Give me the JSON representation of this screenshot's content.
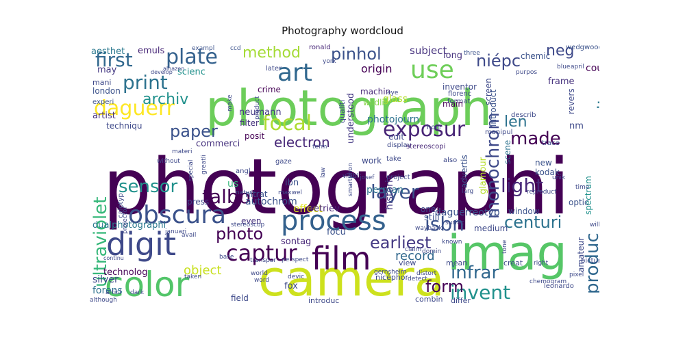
{
  "title": "Photography wordcloud",
  "chart_data": {
    "type": "wordcloud",
    "title": "Photography wordcloud",
    "colormap": "viridis",
    "words": [
      {
        "text": "photographi",
        "color": "#440154"
      },
      {
        "text": "photograph",
        "color": "#6ccd5a"
      },
      {
        "text": "camera",
        "color": "#cde11d"
      },
      {
        "text": "imag",
        "color": "#56c667"
      },
      {
        "text": "color",
        "color": "#52c569"
      },
      {
        "text": "digit",
        "color": "#3e4989"
      },
      {
        "text": "process",
        "color": "#34618d"
      },
      {
        "text": "film",
        "color": "#440154"
      },
      {
        "text": "obscura",
        "color": "#3b528b"
      },
      {
        "text": "captur",
        "color": "#440154"
      },
      {
        "text": "art",
        "color": "#31688e"
      },
      {
        "text": "use",
        "color": "#6ece58"
      },
      {
        "text": "plate",
        "color": "#34618d"
      },
      {
        "text": "first",
        "color": "#31688e"
      },
      {
        "text": "print",
        "color": "#2c728e"
      },
      {
        "text": "daguerr",
        "color": "#fde725"
      },
      {
        "text": "focal",
        "color": "#addc30"
      },
      {
        "text": "exposur",
        "color": "#482576"
      },
      {
        "text": "talbot",
        "color": "#440154"
      },
      {
        "text": "layer",
        "color": "#3b528b"
      },
      {
        "text": "sensor",
        "color": "#21918c"
      },
      {
        "text": "ultraviolet",
        "color": "#35b779"
      },
      {
        "text": "monochrom",
        "color": "#3e4989"
      },
      {
        "text": "sensit",
        "color": "#2a788e"
      },
      {
        "text": "infrar",
        "color": "#31688e"
      },
      {
        "text": "invent",
        "color": "#21918c"
      },
      {
        "text": "form",
        "color": "#440154"
      },
      {
        "text": "light",
        "color": "#482878"
      },
      {
        "text": "centuri",
        "color": "#2c728e"
      },
      {
        "text": "isbn",
        "color": "#3b528b"
      },
      {
        "text": "produc",
        "color": "#31688e"
      },
      {
        "text": "earliest",
        "color": "#443983"
      },
      {
        "text": "photo",
        "color": "#440154"
      },
      {
        "text": "paper",
        "color": "#3b528b"
      },
      {
        "text": "pinhol",
        "color": "#3b528b"
      },
      {
        "text": "niépc",
        "color": "#3e4989"
      },
      {
        "text": "neg",
        "color": "#3e4989"
      },
      {
        "text": "method",
        "color": "#a5db36"
      },
      {
        "text": "archiv",
        "color": "#21918c"
      },
      {
        "text": "len",
        "color": "#2c728e"
      },
      {
        "text": "made",
        "color": "#440154"
      },
      {
        "text": "electron",
        "color": "#482878"
      },
      {
        "text": "object",
        "color": "#c8e020"
      },
      {
        "text": "record",
        "color": "#31688e"
      },
      {
        "text": "origin",
        "color": "#440154"
      },
      {
        "text": "subject",
        "color": "#46327e"
      },
      {
        "text": "photojourn",
        "color": "#2c728e"
      },
      {
        "text": "glass",
        "color": "#b5de2b"
      },
      {
        "text": "wildlif",
        "color": "#86d549"
      },
      {
        "text": "understood",
        "color": "#443983"
      },
      {
        "text": "machin",
        "color": "#482878"
      },
      {
        "text": "autochrom",
        "color": "#3b528b"
      },
      {
        "text": "nitrat",
        "color": "#3b528b"
      },
      {
        "text": "dualphotographi",
        "color": "#2a788e"
      },
      {
        "text": "technolog",
        "color": "#440154"
      },
      {
        "text": "silver",
        "color": "#3e4989"
      },
      {
        "text": "forens",
        "color": "#2c728e"
      },
      {
        "text": "artist",
        "color": "#46327e"
      },
      {
        "text": "techniqu",
        "color": "#3e4989"
      },
      {
        "text": "scienc",
        "color": "#21918c"
      },
      {
        "text": "london",
        "color": "#3b528b"
      },
      {
        "text": "emuls",
        "color": "#482878"
      },
      {
        "text": "aesthet",
        "color": "#2a788e"
      },
      {
        "text": "may",
        "color": "#443983"
      },
      {
        "text": "mani",
        "color": "#3e4989"
      },
      {
        "text": "experi",
        "color": "#3b528b"
      },
      {
        "text": "neumann",
        "color": "#443983"
      },
      {
        "text": "filter",
        "color": "#46327e"
      },
      {
        "text": "commerci",
        "color": "#46327e"
      },
      {
        "text": "posit",
        "color": "#440154"
      },
      {
        "text": "ibn",
        "color": "#3b528b"
      },
      {
        "text": "us",
        "color": "#35b779"
      },
      {
        "text": "press",
        "color": "#3e4989"
      },
      {
        "text": "even",
        "color": "#46327e"
      },
      {
        "text": "effect",
        "color": "#dfe318"
      },
      {
        "text": "sontag",
        "color": "#482878"
      },
      {
        "text": "focu",
        "color": "#3b528b"
      },
      {
        "text": "retriev",
        "color": "#482878"
      },
      {
        "text": "perman",
        "color": "#2c728e"
      },
      {
        "text": "histori",
        "color": "#443983"
      },
      {
        "text": "still",
        "color": "#3b528b"
      },
      {
        "text": "one",
        "color": "#3e4989"
      },
      {
        "text": "daguerreotyp",
        "color": "#3b528b"
      },
      {
        "text": "window",
        "color": "#3b528b"
      },
      {
        "text": "optic",
        "color": "#3b528b"
      },
      {
        "text": "medium",
        "color": "#3e4989"
      },
      {
        "text": "amateur",
        "color": "#3e4989"
      },
      {
        "text": "spectrum",
        "color": "#21918c"
      },
      {
        "text": "glamour",
        "color": "#b5de2b"
      },
      {
        "text": "advertis",
        "color": "#3b528b"
      },
      {
        "text": "kodak",
        "color": "#3b528b"
      },
      {
        "text": "new",
        "color": "#3b528b"
      },
      {
        "text": "scene",
        "color": "#2c728e"
      },
      {
        "text": "introduct",
        "color": "#3b528b"
      },
      {
        "text": "revers",
        "color": "#3e4989"
      },
      {
        "text": "screen",
        "color": "#3e4989"
      },
      {
        "text": "main",
        "color": "#440154"
      },
      {
        "text": "inventor",
        "color": "#3e4989"
      },
      {
        "text": "frame",
        "color": "#46327e"
      },
      {
        "text": "could",
        "color": "#440154"
      },
      {
        "text": "long",
        "color": "#46327e"
      },
      {
        "text": "chemic",
        "color": "#3b528b"
      },
      {
        "text": "three",
        "color": "#3b528b"
      },
      {
        "text": "wedgwood",
        "color": "#3b528b"
      },
      {
        "text": "blue",
        "color": "#3e4989"
      },
      {
        "text": "april",
        "color": "#3e4989"
      },
      {
        "text": "discoveri",
        "color": "#3e4989"
      },
      {
        "text": "purpos",
        "color": "#3e4989"
      },
      {
        "text": "florenc",
        "color": "#3e4989"
      },
      {
        "text": "format",
        "color": "#3e4989"
      },
      {
        "text": "hole",
        "color": "#3e4989"
      },
      {
        "text": "eye",
        "color": "#3e4989"
      },
      {
        "text": "ronald",
        "color": "#482878"
      },
      {
        "text": "exampl",
        "color": "#3b528b"
      },
      {
        "text": "ccd",
        "color": "#3b528b"
      },
      {
        "text": "later",
        "color": "#3e4989"
      },
      {
        "text": "crime",
        "color": "#440154"
      },
      {
        "text": "product",
        "color": "#3e4989"
      },
      {
        "text": "develop",
        "color": "#3e4989"
      },
      {
        "text": "alhazen",
        "color": "#3e4989"
      },
      {
        "text": "make",
        "color": "#3e4989"
      },
      {
        "text": "qualiti",
        "color": "#3e4989"
      },
      {
        "text": "york",
        "color": "#3e4989"
      },
      {
        "text": "edit",
        "color": "#3e4989"
      },
      {
        "text": "display",
        "color": "#3e4989"
      },
      {
        "text": "stereoscopi",
        "color": "#482878"
      },
      {
        "text": "manipul",
        "color": "#3e4989"
      },
      {
        "text": "trace",
        "color": "#3e4989"
      },
      {
        "text": "describ",
        "color": "#3e4989"
      },
      {
        "text": "nm",
        "color": "#3e4989"
      },
      {
        "text": "term",
        "color": "#3e4989"
      },
      {
        "text": "nicéphor",
        "color": "#3e4989"
      },
      {
        "text": "work",
        "color": "#3e4989"
      },
      {
        "text": "take",
        "color": "#3e4989"
      },
      {
        "text": "also",
        "color": "#3e4989"
      },
      {
        "text": "visibl",
        "color": "#3e4989"
      },
      {
        "text": "josef",
        "color": "#3e4989"
      },
      {
        "text": "project",
        "color": "#3e4989"
      },
      {
        "text": "gaze",
        "color": "#3e4989"
      },
      {
        "text": "law",
        "color": "#3e4989"
      },
      {
        "text": "angl",
        "color": "#3e4989"
      },
      {
        "text": "special",
        "color": "#3e4989"
      },
      {
        "text": "greatli",
        "color": "#3e4989"
      },
      {
        "text": "materi",
        "color": "#3e4989"
      },
      {
        "text": "without",
        "color": "#3e4989"
      },
      {
        "text": "natur",
        "color": "#3e4989"
      },
      {
        "text": "maxwel",
        "color": "#3e4989"
      },
      {
        "text": "smartphon",
        "color": "#3e4989"
      },
      {
        "text": "larg",
        "color": "#3e4989"
      },
      {
        "text": "reproduct",
        "color": "#3e4989"
      },
      {
        "text": "unik",
        "color": "#3e4989"
      },
      {
        "text": "time",
        "color": "#3e4989"
      },
      {
        "text": "documentari",
        "color": "#3e4989"
      },
      {
        "text": "calotyp",
        "color": "#3e4989"
      },
      {
        "text": "projector",
        "color": "#3e4989"
      },
      {
        "text": "januari",
        "color": "#3e4989"
      },
      {
        "text": "avail",
        "color": "#3e4989"
      },
      {
        "text": "wayback",
        "color": "#3e4989"
      },
      {
        "text": "surfac",
        "color": "#3e4989"
      },
      {
        "text": "william",
        "color": "#3e4989"
      },
      {
        "text": "stereoscop",
        "color": "#3e4989"
      },
      {
        "text": "known",
        "color": "#3e4989"
      },
      {
        "text": "claim",
        "color": "#3e4989"
      },
      {
        "text": "domin",
        "color": "#3e4989"
      },
      {
        "text": "tone",
        "color": "#3e4989"
      },
      {
        "text": "mean",
        "color": "#3e4989"
      },
      {
        "text": "view",
        "color": "#3e4989"
      },
      {
        "text": "distort",
        "color": "#3e4989"
      },
      {
        "text": "creat",
        "color": "#3e4989"
      },
      {
        "text": "right",
        "color": "#3e4989"
      },
      {
        "text": "pictur",
        "color": "#3e4989"
      },
      {
        "text": "pixel",
        "color": "#3e4989"
      },
      {
        "text": "chemogram",
        "color": "#3e4989"
      },
      {
        "text": "leonardo",
        "color": "#3e4989"
      },
      {
        "text": "continu",
        "color": "#3e4989"
      },
      {
        "text": "base",
        "color": "#3e4989"
      },
      {
        "text": "transpar",
        "color": "#3e4989"
      },
      {
        "text": "perspect",
        "color": "#3e4989"
      },
      {
        "text": "taken",
        "color": "#3e4989"
      },
      {
        "text": "world",
        "color": "#3e4989"
      },
      {
        "text": "word",
        "color": "#3e4989"
      },
      {
        "text": "devic",
        "color": "#3e4989"
      },
      {
        "text": "gernsheim",
        "color": "#3e4989"
      },
      {
        "text": "detect",
        "color": "#3e4989"
      },
      {
        "text": "articl",
        "color": "#3e4989"
      },
      {
        "text": "dark",
        "color": "#3e4989"
      },
      {
        "text": "although",
        "color": "#3e4989"
      },
      {
        "text": "field",
        "color": "#3e4989"
      },
      {
        "text": "fox",
        "color": "#3e4989"
      },
      {
        "text": "introduc",
        "color": "#3e4989"
      },
      {
        "text": "combin",
        "color": "#3e4989"
      },
      {
        "text": "differ",
        "color": "#3e4989"
      }
    ]
  }
}
